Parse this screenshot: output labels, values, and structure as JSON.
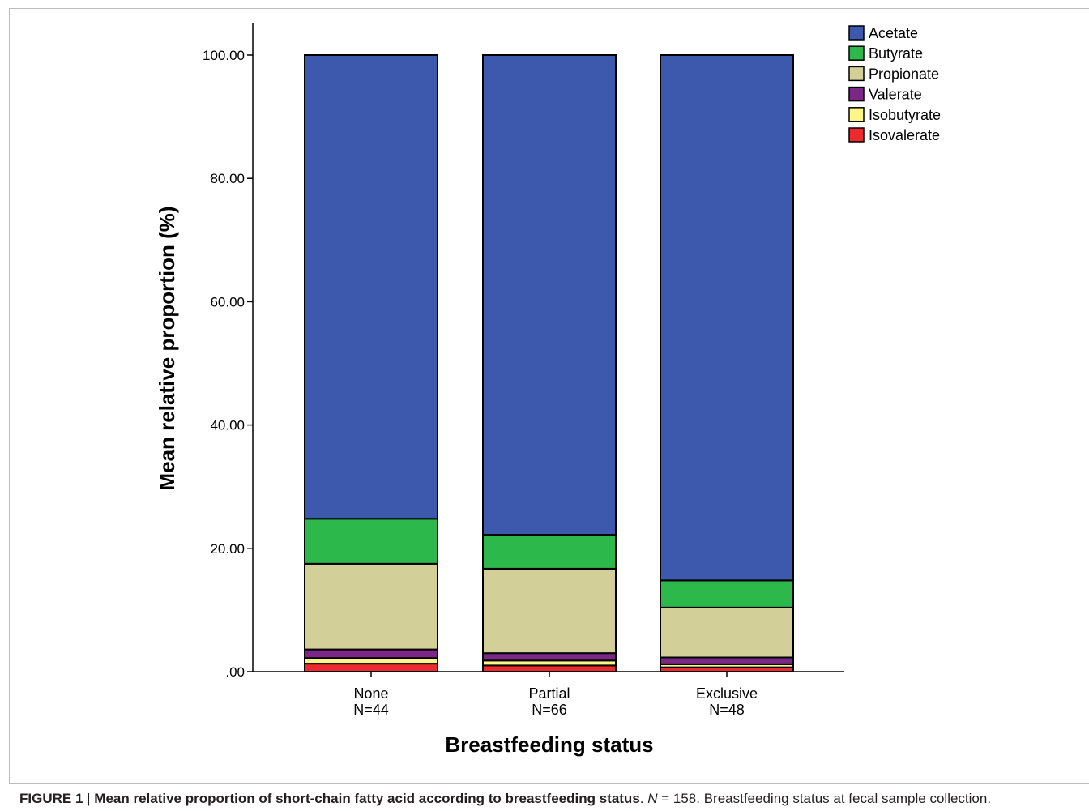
{
  "chart_data": {
    "type": "bar",
    "stacked": true,
    "categories": [
      "None",
      "Partial",
      "Exclusive"
    ],
    "category_n": [
      "N=44",
      "N=66",
      "N=48"
    ],
    "xlabel": "Breastfeeding status",
    "ylabel": "Mean relative proportion (%)",
    "ylim": [
      0,
      100
    ],
    "yticks": [
      0,
      20,
      40,
      60,
      80,
      100
    ],
    "ytick_labels": [
      ".00",
      "20.00",
      "40.00",
      "60.00",
      "80.00",
      "100.00"
    ],
    "grid": false,
    "legend_position": "top-right",
    "series": [
      {
        "name": "Isovalerate",
        "color": "#ec2a2f",
        "values": [
          1.3,
          1.0,
          0.7
        ]
      },
      {
        "name": "Isobutyrate",
        "color": "#fbf685",
        "values": [
          0.9,
          0.8,
          0.5
        ]
      },
      {
        "name": "Valerate",
        "color": "#7b2786",
        "values": [
          1.4,
          1.2,
          1.1
        ]
      },
      {
        "name": "Propionate",
        "color": "#d3cf98",
        "values": [
          13.9,
          13.7,
          8.1
        ]
      },
      {
        "name": "Butyrate",
        "color": "#2db84b",
        "values": [
          7.3,
          5.5,
          4.4
        ]
      },
      {
        "name": "Acetate",
        "color": "#3d59ae",
        "values": [
          75.2,
          77.8,
          85.2
        ]
      }
    ],
    "legend_order": [
      "Acetate",
      "Butyrate",
      "Propionate",
      "Valerate",
      "Isobutyrate",
      "Isovalerate"
    ]
  },
  "caption": {
    "label": "FIGURE 1",
    "separator": " | ",
    "title": "Mean relative proportion of short-chain fatty acid according to breastfeeding status",
    "n_symbol": "N",
    "n_text": " = 158. Breastfeeding status at fecal sample collection."
  }
}
